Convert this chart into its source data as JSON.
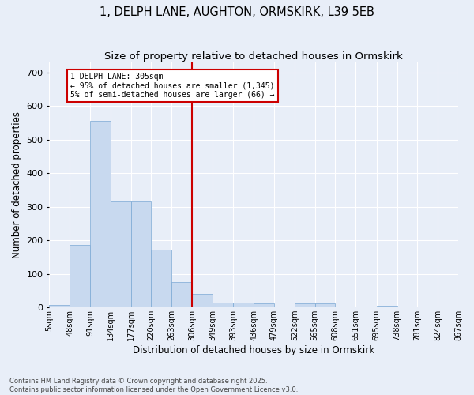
{
  "title": "1, DELPH LANE, AUGHTON, ORMSKIRK, L39 5EB",
  "subtitle": "Size of property relative to detached houses in Ormskirk",
  "xlabel": "Distribution of detached houses by size in Ormskirk",
  "ylabel": "Number of detached properties",
  "bar_color": "#c8d9ef",
  "bar_edge_color": "#7aa8d4",
  "background_color": "#e8eef8",
  "fig_background_color": "#e8eef8",
  "grid_color": "#ffffff",
  "vline_color": "#cc0000",
  "annotation_box_color": "#cc0000",
  "annotation_text": "1 DELPH LANE: 305sqm\n← 95% of detached houses are smaller (1,345)\n5% of semi-detached houses are larger (66) →",
  "bin_edges": [
    5,
    48,
    91,
    134,
    177,
    220,
    263,
    306,
    349,
    393,
    436,
    479,
    522,
    565,
    608,
    651,
    695,
    738,
    781,
    824,
    867
  ],
  "counts": [
    8,
    187,
    557,
    316,
    316,
    172,
    76,
    40,
    15,
    15,
    11,
    0,
    11,
    11,
    0,
    0,
    5,
    0,
    0,
    0
  ],
  "vline_x_bin": 7,
  "ylim": [
    0,
    730
  ],
  "yticks": [
    0,
    100,
    200,
    300,
    400,
    500,
    600,
    700
  ],
  "tick_labels": [
    "5sqm",
    "48sqm",
    "91sqm",
    "134sqm",
    "177sqm",
    "220sqm",
    "263sqm",
    "306sqm",
    "349sqm",
    "393sqm",
    "436sqm",
    "479sqm",
    "522sqm",
    "565sqm",
    "608sqm",
    "651sqm",
    "695sqm",
    "738sqm",
    "781sqm",
    "824sqm",
    "867sqm"
  ],
  "footer": "Contains HM Land Registry data © Crown copyright and database right 2025.\nContains public sector information licensed under the Open Government Licence v3.0.",
  "title_fontsize": 10.5,
  "subtitle_fontsize": 9.5,
  "tick_fontsize": 7,
  "label_fontsize": 8.5,
  "footer_fontsize": 6
}
